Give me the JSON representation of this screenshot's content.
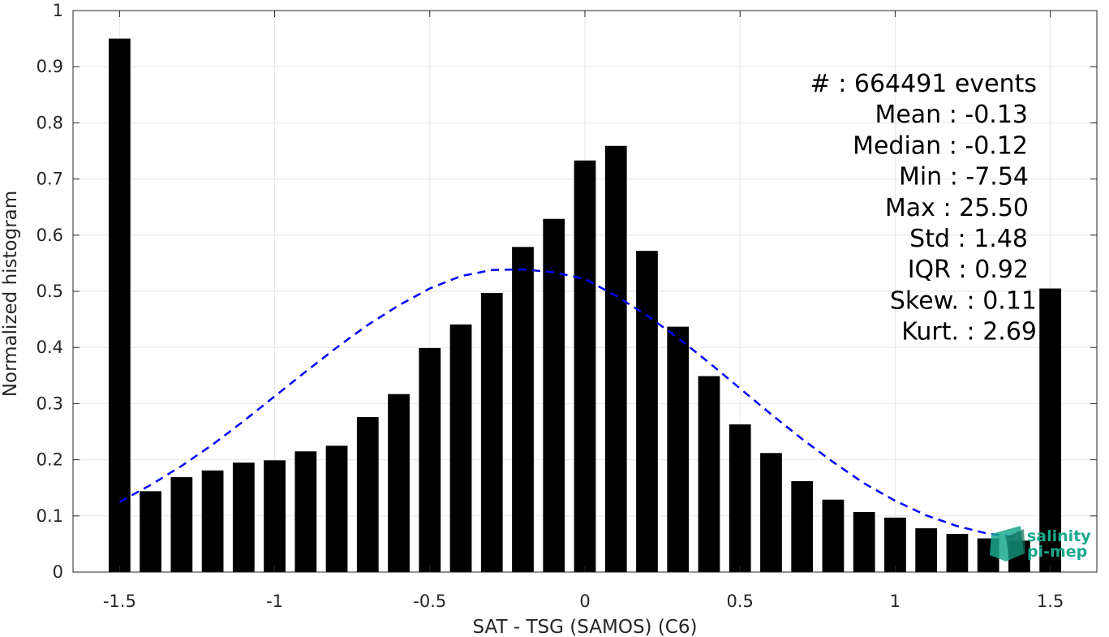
{
  "chart_data": {
    "type": "bar",
    "xlabel": "SAT - TSG (SAMOS) (C6)",
    "ylabel": "Normalized histogram",
    "xlim": [
      -1.65,
      1.65
    ],
    "ylim": [
      0,
      1
    ],
    "grid": true,
    "x_ticks": [
      -1.5,
      -1,
      -0.5,
      0,
      0.5,
      1,
      1.5
    ],
    "x_tick_labels": [
      "-1.5",
      "-1",
      "-0.5",
      "0",
      "0.5",
      "1",
      "1.5"
    ],
    "y_ticks": [
      0,
      0.1,
      0.2,
      0.3,
      0.4,
      0.5,
      0.6,
      0.7,
      0.8,
      0.9,
      1
    ],
    "y_tick_labels": [
      "0",
      "0.1",
      "0.2",
      "0.3",
      "0.4",
      "0.5",
      "0.6",
      "0.7",
      "0.8",
      "0.9",
      "1"
    ],
    "bar_color": "#000000",
    "bar_width": 0.07,
    "bars": {
      "x": [
        -1.5,
        -1.4,
        -1.3,
        -1.2,
        -1.1,
        -1.0,
        -0.9,
        -0.8,
        -0.7,
        -0.6,
        -0.5,
        -0.4,
        -0.3,
        -0.2,
        -0.1,
        0.0,
        0.1,
        0.2,
        0.3,
        0.4,
        0.5,
        0.6,
        0.7,
        0.8,
        0.9,
        1.0,
        1.1,
        1.2,
        1.3,
        1.4,
        1.5
      ],
      "values": [
        0.95,
        0.144,
        0.169,
        0.181,
        0.195,
        0.199,
        0.215,
        0.225,
        0.276,
        0.317,
        0.399,
        0.441,
        0.497,
        0.579,
        0.629,
        0.733,
        0.759,
        0.572,
        0.437,
        0.349,
        0.263,
        0.212,
        0.162,
        0.129,
        0.107,
        0.097,
        0.078,
        0.068,
        0.06,
        0.056,
        0.505
      ]
    },
    "fit_curve": {
      "style": "dashed",
      "color": "#0000ff",
      "x": [
        -1.5,
        -1.4,
        -1.3,
        -1.2,
        -1.1,
        -1.0,
        -0.9,
        -0.8,
        -0.7,
        -0.6,
        -0.5,
        -0.4,
        -0.3,
        -0.2,
        -0.1,
        0.0,
        0.1,
        0.2,
        0.3,
        0.4,
        0.5,
        0.6,
        0.7,
        0.8,
        0.9,
        1.0,
        1.1,
        1.2,
        1.3,
        1.4
      ],
      "values": [
        0.125,
        0.155,
        0.189,
        0.227,
        0.269,
        0.313,
        0.357,
        0.4,
        0.44,
        0.475,
        0.505,
        0.527,
        0.538,
        0.539,
        0.534,
        0.522,
        0.492,
        0.457,
        0.417,
        0.373,
        0.327,
        0.281,
        0.237,
        0.196,
        0.158,
        0.127,
        0.101,
        0.082,
        0.068,
        0.062
      ]
    }
  },
  "stats": {
    "lines": [
      "#   : 664491 events",
      "Mean : -0.13",
      "Median : -0.12",
      "Min : -7.54",
      "Max : 25.50",
      "Std : 1.48",
      "IQR : 0.92",
      "Skew. : 0.11",
      "Kurt. : 2.69"
    ]
  },
  "logo": {
    "line1": "salinity",
    "line2": "pi-mep",
    "color": "#1aa88c"
  }
}
